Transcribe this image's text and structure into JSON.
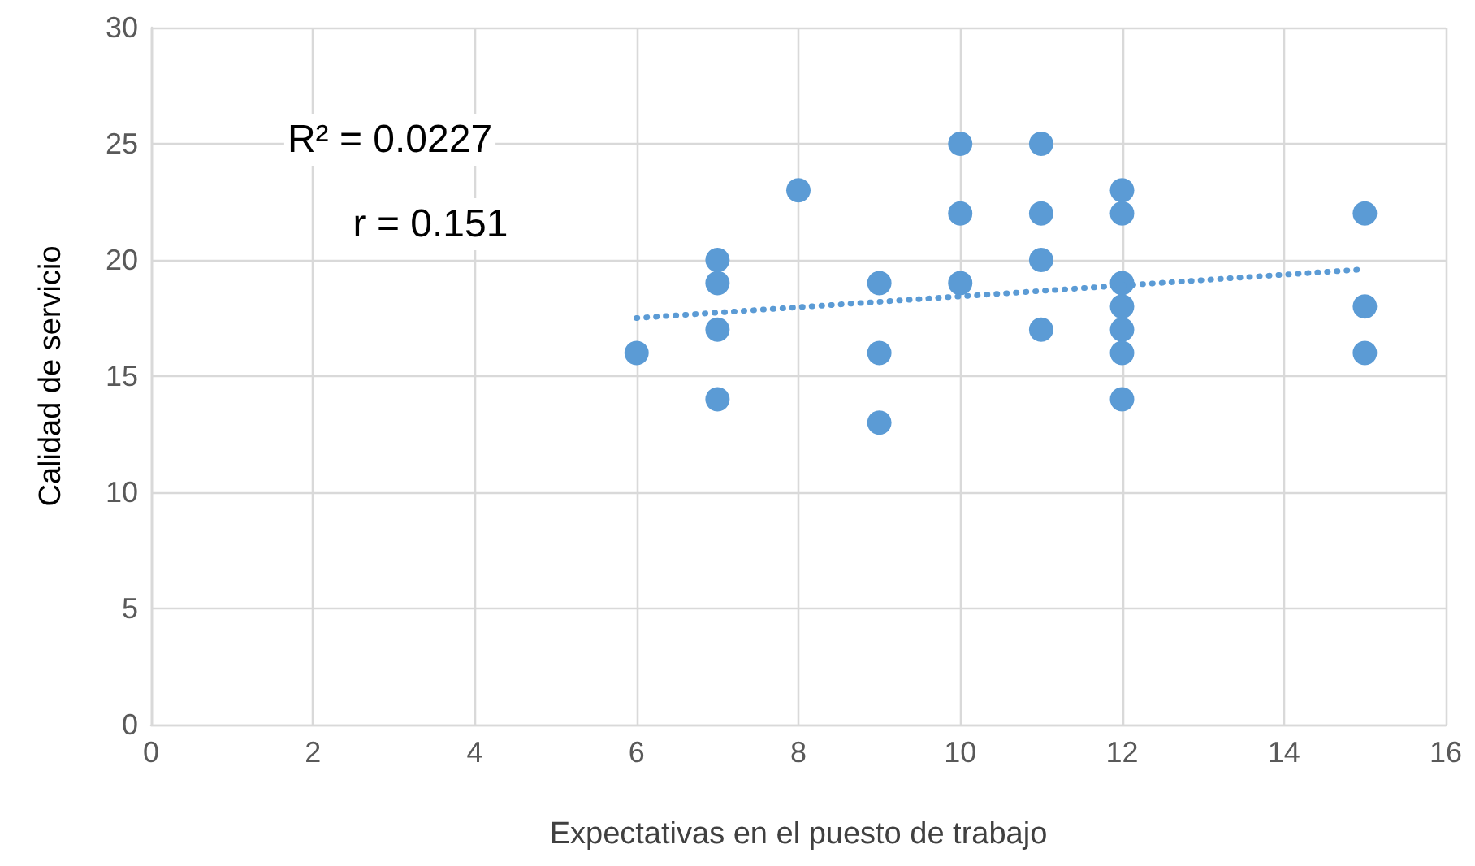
{
  "chart_data": {
    "type": "scatter",
    "xlabel": "Expectativas en el puesto de trabajo",
    "ylabel": "Calidad de servicio",
    "xlim": [
      0,
      16
    ],
    "xticks": [
      0,
      2,
      4,
      6,
      8,
      10,
      12,
      14,
      16
    ],
    "ylim": [
      0,
      30
    ],
    "yticks": [
      0,
      5,
      10,
      15,
      20,
      25,
      30
    ],
    "grid": true,
    "marker": "circle",
    "annotations": [
      "R² = 0.0227",
      "r = 0.151"
    ],
    "series": [
      {
        "color": "#5b9bd5",
        "x": [
          6,
          7,
          7,
          7,
          7,
          8,
          9,
          9,
          9,
          10,
          10,
          10,
          11,
          11,
          11,
          11,
          12,
          12,
          12,
          12,
          12,
          12,
          12,
          15,
          15,
          15
        ],
        "values": [
          16,
          20,
          19,
          17,
          14,
          23,
          19,
          16,
          13,
          25,
          22,
          19,
          25,
          22,
          20,
          17,
          23,
          22,
          19,
          18,
          17,
          16,
          14,
          22,
          18,
          16
        ]
      },
      {
        "type": "line",
        "color": "#5b9bd5",
        "line_style": "dotted",
        "marker": "none",
        "x": [
          6,
          15
        ],
        "values": [
          17.5,
          19.6
        ]
      }
    ]
  }
}
